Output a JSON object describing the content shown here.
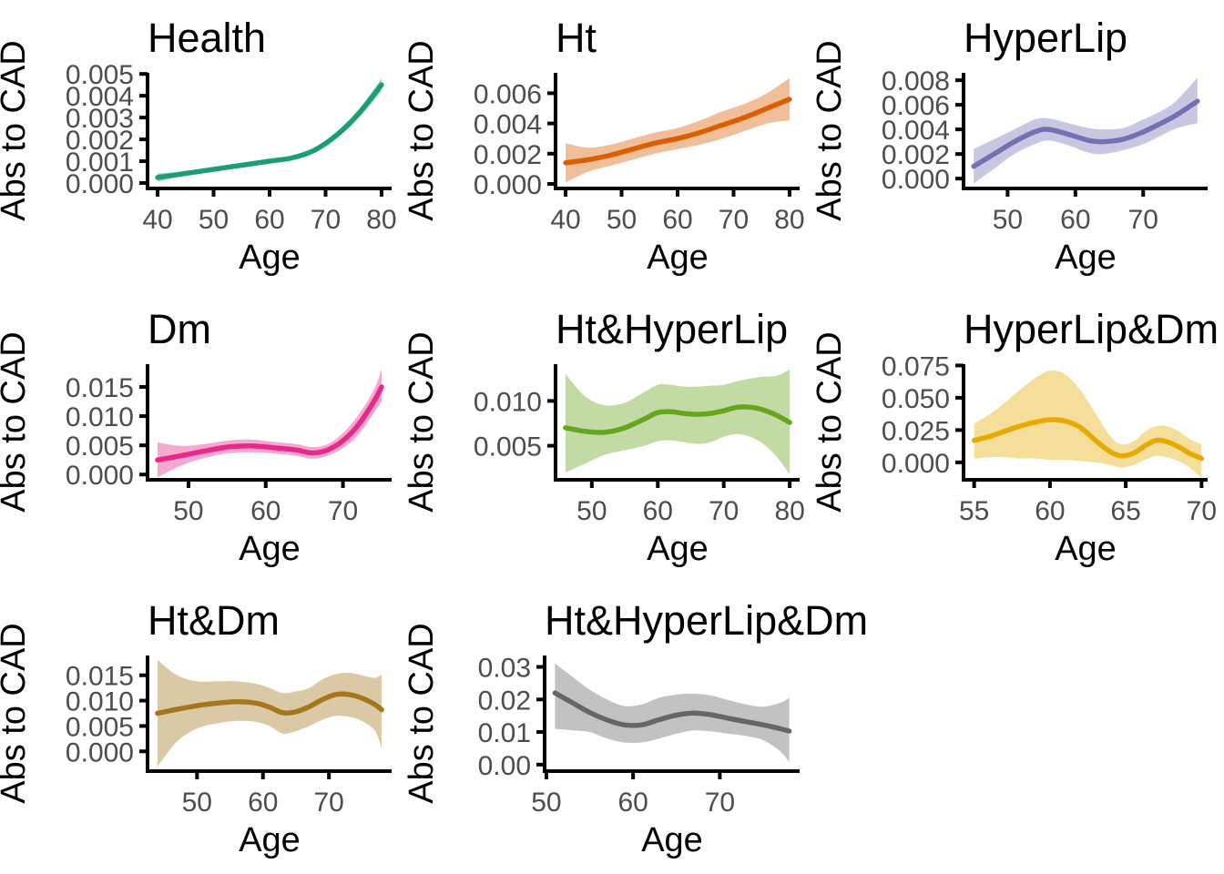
{
  "figure_title": "",
  "axis": {
    "ylabel": "Abs to CAD",
    "xlabel": "Age"
  },
  "chart_data": {
    "type": "line",
    "description": "Grid of 8 smoothed line plots with confidence ribbons, absolute risk to CAD vs Age per disease-state group",
    "xlabel": "Age",
    "ylabel": "Abs to CAD",
    "grid": "off",
    "legend": "none",
    "panels": [
      {
        "title": "Health",
        "color": "#1B9E77",
        "row": 0,
        "col": 0,
        "xlim": [
          38.2,
          81.8
        ],
        "xticks": [
          40,
          50,
          60,
          70,
          80
        ],
        "xtick_labels": [
          "40",
          "50",
          "60",
          "70",
          "80"
        ],
        "ylim": [
          -0.00025,
          0.00505
        ],
        "yticks": [
          0.0,
          0.001,
          0.002,
          0.003,
          0.004,
          0.005
        ],
        "ytick_labels": [
          "0.000",
          "0.001",
          "0.002",
          "0.003",
          "0.004",
          "0.005"
        ],
        "x": [
          40,
          44,
          48,
          52,
          56,
          60,
          64,
          68,
          72,
          76,
          80
        ],
        "y": [
          0.00025,
          0.0004,
          0.00055,
          0.0007,
          0.00085,
          0.001,
          0.00115,
          0.0015,
          0.0022,
          0.0032,
          0.0045
        ],
        "lo": [
          5e-05,
          0.0003,
          0.00045,
          0.0006,
          0.00075,
          0.0009,
          0.00105,
          0.0014,
          0.00205,
          0.003,
          0.0042
        ],
        "hi": [
          0.00045,
          0.0005,
          0.00065,
          0.0008,
          0.00095,
          0.0011,
          0.00125,
          0.0016,
          0.00235,
          0.0034,
          0.0048
        ]
      },
      {
        "title": "Ht",
        "color": "#D95F02",
        "row": 0,
        "col": 1,
        "xlim": [
          38.2,
          81.8
        ],
        "xticks": [
          40,
          50,
          60,
          70,
          80
        ],
        "xtick_labels": [
          "40",
          "50",
          "60",
          "70",
          "80"
        ],
        "ylim": [
          -0.0003,
          0.00735
        ],
        "yticks": [
          0.0,
          0.002,
          0.004,
          0.006
        ],
        "ytick_labels": [
          "0.000",
          "0.002",
          "0.004",
          "0.006"
        ],
        "x": [
          40,
          44,
          48,
          52,
          56,
          60,
          64,
          68,
          72,
          76,
          80
        ],
        "y": [
          0.0014,
          0.0016,
          0.0019,
          0.0023,
          0.0027,
          0.003,
          0.0034,
          0.0039,
          0.0044,
          0.005,
          0.0056
        ],
        "lo": [
          0.0001,
          0.0008,
          0.0012,
          0.0016,
          0.002,
          0.0023,
          0.0026,
          0.003,
          0.0035,
          0.004,
          0.0042
        ],
        "hi": [
          0.0027,
          0.0024,
          0.0026,
          0.003,
          0.0034,
          0.0037,
          0.0042,
          0.0048,
          0.0053,
          0.006,
          0.007
        ]
      },
      {
        "title": "HyperLip",
        "color": "#7570B3",
        "row": 0,
        "col": 2,
        "xlim": [
          43.5,
          79.5
        ],
        "xticks": [
          50,
          60,
          70
        ],
        "xtick_labels": [
          "50",
          "60",
          "70"
        ],
        "ylim": [
          -0.0008,
          0.0086
        ],
        "yticks": [
          0.0,
          0.002,
          0.004,
          0.006,
          0.008
        ],
        "ytick_labels": [
          "0.000",
          "0.002",
          "0.004",
          "0.006",
          "0.008"
        ],
        "x": [
          45,
          48,
          51,
          54,
          56,
          59,
          62,
          64,
          67,
          70,
          73,
          75,
          78
        ],
        "y": [
          0.001,
          0.002,
          0.003,
          0.0038,
          0.004,
          0.0036,
          0.0031,
          0.003,
          0.0032,
          0.0038,
          0.0046,
          0.0052,
          0.0063
        ],
        "lo": [
          -0.0004,
          0.0008,
          0.002,
          0.0028,
          0.0031,
          0.0027,
          0.0021,
          0.002,
          0.0023,
          0.0028,
          0.0036,
          0.0041,
          0.0045
        ],
        "hi": [
          0.0024,
          0.0032,
          0.004,
          0.0048,
          0.0049,
          0.0045,
          0.0041,
          0.004,
          0.0041,
          0.0048,
          0.0056,
          0.0064,
          0.0082
        ]
      },
      {
        "title": "Dm",
        "color": "#E7298A",
        "row": 1,
        "col": 0,
        "xlim": [
          44.7,
          76.3
        ],
        "xticks": [
          50,
          60,
          70
        ],
        "xtick_labels": [
          "50",
          "60",
          "70"
        ],
        "ylim": [
          -0.0009,
          0.0189
        ],
        "yticks": [
          0.0,
          0.005,
          0.01,
          0.015
        ],
        "ytick_labels": [
          "0.000",
          "0.005",
          "0.010",
          "0.015"
        ],
        "x": [
          46,
          49,
          52,
          55,
          58,
          61,
          64,
          66,
          68,
          70,
          72,
          74,
          75
        ],
        "y": [
          0.0025,
          0.0032,
          0.004,
          0.0047,
          0.0049,
          0.0046,
          0.0042,
          0.0037,
          0.0042,
          0.0058,
          0.0085,
          0.0125,
          0.015
        ],
        "lo": [
          -0.0005,
          0.0015,
          0.0028,
          0.0036,
          0.0038,
          0.0036,
          0.0032,
          0.0027,
          0.0032,
          0.0045,
          0.0068,
          0.0105,
          0.0125
        ],
        "hi": [
          0.0055,
          0.0049,
          0.0052,
          0.0058,
          0.006,
          0.0056,
          0.0052,
          0.0047,
          0.0052,
          0.0071,
          0.0102,
          0.0145,
          0.018
        ]
      },
      {
        "title": "Ht&HyperLip",
        "color": "#66A61E",
        "row": 1,
        "col": 1,
        "xlim": [
          44.5,
          81.5
        ],
        "xticks": [
          50,
          60,
          70,
          80
        ],
        "xtick_labels": [
          "50",
          "60",
          "70",
          "80"
        ],
        "ylim": [
          0.0012,
          0.0141
        ],
        "yticks": [
          0.005,
          0.01
        ],
        "ytick_labels": [
          "0.005",
          "0.010"
        ],
        "x": [
          46,
          49,
          52,
          55,
          58,
          60,
          62,
          64,
          66,
          68,
          70,
          72,
          74,
          76,
          78,
          80
        ],
        "y": [
          0.007,
          0.0066,
          0.0065,
          0.007,
          0.008,
          0.0087,
          0.0088,
          0.0086,
          0.0085,
          0.0086,
          0.0089,
          0.0093,
          0.0093,
          0.009,
          0.0084,
          0.0076
        ],
        "lo": [
          0.002,
          0.003,
          0.004,
          0.0045,
          0.005,
          0.0055,
          0.0056,
          0.0054,
          0.0052,
          0.0054,
          0.006,
          0.0063,
          0.006,
          0.0052,
          0.0038,
          0.0018
        ],
        "hi": [
          0.013,
          0.0105,
          0.0095,
          0.0098,
          0.011,
          0.0118,
          0.0118,
          0.0116,
          0.0116,
          0.0117,
          0.0118,
          0.0122,
          0.0125,
          0.0127,
          0.0128,
          0.0135
        ]
      },
      {
        "title": "HyperLip&Dm",
        "color": "#E6AB02",
        "row": 1,
        "col": 2,
        "xlim": [
          54.3,
          70.4
        ],
        "xticks": [
          55,
          60,
          65,
          70
        ],
        "xtick_labels": [
          "55",
          "60",
          "65",
          "70"
        ],
        "ylim": [
          -0.0135,
          0.076
        ],
        "yticks": [
          0.0,
          0.025,
          0.05,
          0.075
        ],
        "ytick_labels": [
          "0.000",
          "0.025",
          "0.050",
          "0.075"
        ],
        "x": [
          55,
          56,
          57,
          58,
          59,
          60,
          61,
          62,
          63,
          64,
          64.7,
          65.5,
          66.3,
          67,
          67.7,
          68.5,
          69.2,
          70
        ],
        "y": [
          0.017,
          0.02,
          0.024,
          0.028,
          0.031,
          0.033,
          0.032,
          0.027,
          0.017,
          0.008,
          0.005,
          0.007,
          0.013,
          0.017,
          0.016,
          0.012,
          0.007,
          0.003
        ],
        "lo": [
          0.003,
          0.004,
          0.004,
          0.003,
          0.003,
          0.002,
          0.002,
          0.001,
          0.0,
          -0.002,
          -0.004,
          -0.002,
          0.002,
          0.005,
          0.004,
          0.001,
          -0.004,
          -0.012
        ],
        "hi": [
          0.03,
          0.037,
          0.046,
          0.056,
          0.065,
          0.071,
          0.068,
          0.056,
          0.038,
          0.02,
          0.014,
          0.016,
          0.024,
          0.028,
          0.028,
          0.024,
          0.018,
          0.014
        ]
      },
      {
        "title": "Ht&Dm",
        "color": "#A6761D",
        "row": 2,
        "col": 0,
        "xlim": [
          42.5,
          79.5
        ],
        "xticks": [
          50,
          60,
          70
        ],
        "xtick_labels": [
          "50",
          "60",
          "70"
        ],
        "ylim": [
          -0.0039,
          0.0189
        ],
        "yticks": [
          0.0,
          0.005,
          0.01,
          0.015
        ],
        "ytick_labels": [
          "0.000",
          "0.005",
          "0.010",
          "0.015"
        ],
        "x": [
          44,
          47,
          50,
          53,
          56,
          59,
          61,
          63,
          65,
          67,
          69,
          71,
          73,
          75,
          77,
          78
        ],
        "y": [
          0.0075,
          0.0083,
          0.009,
          0.0095,
          0.0098,
          0.0095,
          0.0087,
          0.0076,
          0.0078,
          0.0088,
          0.0102,
          0.0112,
          0.0112,
          0.0105,
          0.0092,
          0.0082
        ],
        "lo": [
          -0.003,
          0.002,
          0.0045,
          0.0055,
          0.006,
          0.0058,
          0.005,
          0.0035,
          0.004,
          0.005,
          0.0062,
          0.007,
          0.0068,
          0.006,
          0.004,
          0.0005
        ],
        "hi": [
          0.018,
          0.015,
          0.0138,
          0.0138,
          0.0138,
          0.0133,
          0.0125,
          0.0115,
          0.0118,
          0.0125,
          0.0142,
          0.0152,
          0.0155,
          0.015,
          0.0145,
          0.0152
        ]
      },
      {
        "title": "Ht&HyperLip&Dm",
        "color": "#666666",
        "row": 2,
        "col": 1,
        "xlim": [
          49.8,
          79.2
        ],
        "xticks": [
          50,
          60,
          70
        ],
        "xtick_labels": [
          "50",
          "60",
          "70"
        ],
        "ylim": [
          -0.002,
          0.0335
        ],
        "yticks": [
          0.0,
          0.01,
          0.02,
          0.03
        ],
        "ytick_labels": [
          "0.00",
          "0.01",
          "0.02",
          "0.03"
        ],
        "x": [
          51,
          53,
          55,
          57,
          59,
          61,
          63,
          65,
          67,
          69,
          71,
          73,
          75,
          77,
          78
        ],
        "y": [
          0.022,
          0.019,
          0.016,
          0.0137,
          0.0122,
          0.0122,
          0.0138,
          0.0152,
          0.0158,
          0.0153,
          0.0142,
          0.0132,
          0.0122,
          0.011,
          0.0103
        ],
        "lo": [
          0.011,
          0.0105,
          0.01,
          0.008,
          0.0068,
          0.0068,
          0.008,
          0.0095,
          0.0105,
          0.0102,
          0.0095,
          0.0088,
          0.0075,
          0.004,
          0.0008
        ],
        "hi": [
          0.031,
          0.027,
          0.023,
          0.02,
          0.018,
          0.0185,
          0.0205,
          0.0215,
          0.0218,
          0.0212,
          0.0198,
          0.0185,
          0.0178,
          0.019,
          0.0205
        ]
      }
    ]
  },
  "style": {
    "background": "#ffffff",
    "axis_color": "#000000",
    "tick_text_color": "#4d4d4d",
    "ribbon_opacity": 0.4
  }
}
